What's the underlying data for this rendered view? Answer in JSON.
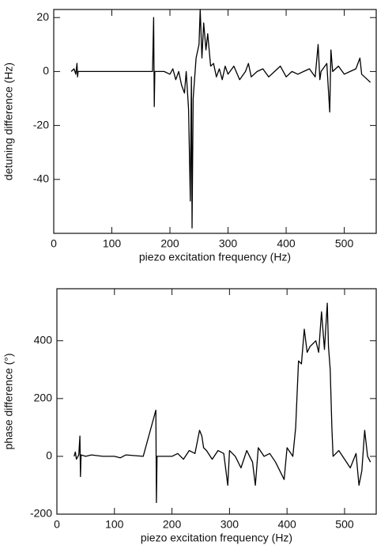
{
  "chart_data": [
    {
      "type": "line",
      "xlabel": "piezo excitation frequency (Hz)",
      "ylabel": "detuning difference (Hz)",
      "xlim": [
        0,
        555
      ],
      "ylim": [
        -60,
        23
      ],
      "xticks": [
        0,
        100,
        200,
        300,
        400,
        500
      ],
      "yticks": [
        -40,
        -20,
        0,
        20
      ],
      "series": [
        {
          "color": "#000000",
          "x": [
            30,
            35,
            38,
            40,
            41,
            42,
            60,
            100,
            150,
            170,
            172,
            173,
            174,
            190,
            200,
            205,
            210,
            215,
            220,
            225,
            228,
            232,
            235,
            237,
            238,
            240,
            245,
            250,
            252,
            255,
            258,
            262,
            265,
            270,
            275,
            280,
            285,
            290,
            295,
            300,
            310,
            320,
            330,
            335,
            340,
            350,
            360,
            370,
            380,
            390,
            400,
            410,
            420,
            430,
            440,
            450,
            455,
            458,
            460,
            470,
            475,
            477,
            480,
            490,
            500,
            510,
            520,
            527,
            530,
            540,
            545
          ],
          "values": [
            0,
            1,
            -1,
            3,
            -2,
            0,
            0,
            0,
            0,
            0,
            20,
            -13,
            0,
            0,
            -1,
            1,
            -3,
            0,
            -5,
            -8,
            0,
            -14,
            -48,
            -2,
            -58,
            -10,
            5,
            10,
            23,
            5,
            18,
            8,
            14,
            2,
            3,
            -2,
            1,
            -3,
            2,
            -1,
            2,
            -3,
            0,
            3,
            -2,
            0,
            1,
            -2,
            0,
            2,
            -2,
            0,
            -1,
            0,
            1,
            -2,
            10,
            -3,
            0,
            3,
            -15,
            8,
            0,
            2,
            -1,
            0,
            1,
            5,
            -1,
            -3,
            -4
          ]
        }
      ]
    },
    {
      "type": "line",
      "xlabel": "piezo excitation frequency (Hz)",
      "ylabel": "phase difference (°)",
      "xlim": [
        0,
        555
      ],
      "ylim": [
        -200,
        580
      ],
      "xticks": [
        0,
        100,
        200,
        300,
        400,
        500
      ],
      "yticks": [
        -200,
        0,
        200,
        400
      ],
      "series": [
        {
          "color": "#000000",
          "x": [
            30,
            32,
            34,
            38,
            40,
            41,
            42,
            50,
            60,
            80,
            100,
            110,
            120,
            150,
            172,
            173,
            174,
            200,
            210,
            220,
            230,
            240,
            245,
            248,
            252,
            255,
            260,
            270,
            280,
            290,
            297,
            300,
            310,
            320,
            330,
            340,
            345,
            350,
            360,
            370,
            380,
            395,
            400,
            410,
            415,
            420,
            425,
            430,
            435,
            440,
            450,
            455,
            460,
            465,
            470,
            472,
            475,
            478,
            480,
            490,
            500,
            510,
            520,
            525,
            530,
            535,
            540,
            545
          ],
          "values": [
            0,
            15,
            -10,
            5,
            70,
            -70,
            5,
            0,
            5,
            0,
            0,
            -5,
            5,
            0,
            160,
            -160,
            0,
            0,
            10,
            -10,
            20,
            10,
            60,
            90,
            70,
            30,
            20,
            -10,
            20,
            10,
            -100,
            20,
            0,
            -40,
            20,
            -20,
            -100,
            30,
            0,
            10,
            -20,
            -80,
            30,
            0,
            100,
            330,
            320,
            440,
            360,
            380,
            400,
            360,
            500,
            370,
            530,
            380,
            300,
            100,
            0,
            20,
            -10,
            -40,
            10,
            -100,
            -50,
            90,
            0,
            -20
          ]
        }
      ]
    }
  ]
}
